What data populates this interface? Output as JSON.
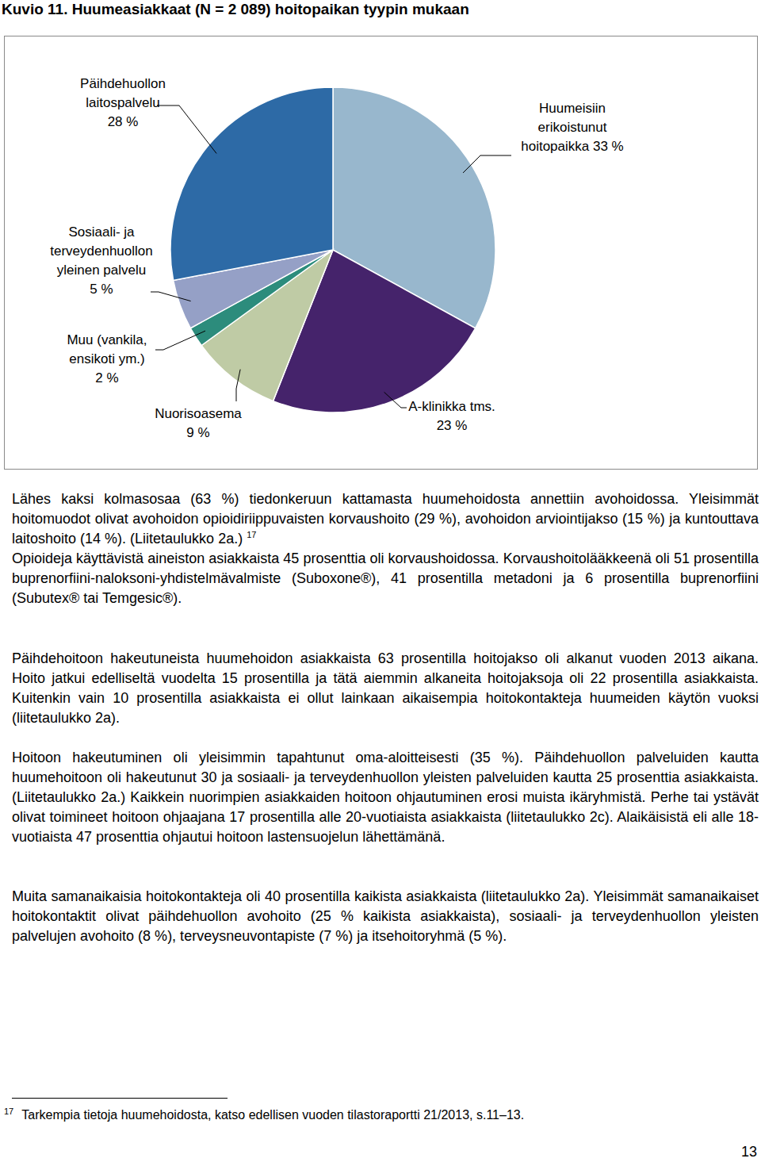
{
  "chart_data": {
    "type": "pie",
    "title": "Kuvio 11. Huumeasiakkaat (N = 2 089) hoitopaikan tyypin mukaan",
    "categories": [
      "Huumeisiin erikoistunut hoitopaikka",
      "A-klinikka tms.",
      "Nuorisoasema",
      "Muu (vankila, ensikoti ym.)",
      "Sosiaali- ja terveydenhuollon yleinen palvelu",
      "Päihdehuollon laitospalvelu"
    ],
    "values": [
      33,
      23,
      9,
      2,
      5,
      28
    ],
    "value_labels": [
      "33 %",
      "23 %",
      "9 %",
      "2 %",
      "5 %",
      "28 %"
    ],
    "colors": [
      "#98b7cd",
      "#45236b",
      "#bfcba5",
      "#2c8c7c",
      "#95a0c6",
      "#2d6aa6"
    ],
    "data_labels": true
  },
  "paragraphs": [
    {
      "text": "Lähes kaksi kolmasosaa (63 %) tiedonkeruun kattamasta huumehoidosta annettiin avohoidossa. Yleisimmät hoitomuodot olivat avohoidon opioidiriippuvaisten korvaushoito (29 %), avohoidon arviointijakso (15 %) ja kuntouttava laitoshoito (14 %). (Liitetaulukko 2a.)",
      "sup": "17"
    },
    {
      "text": "Opioideja käyttävistä aineiston asiakkaista 45 prosenttia oli korvaushoidossa. Korvaushoitolääkkeenä oli 51 prosentilla buprenorfiini-naloksoni-yhdistelmävalmiste (Suboxone®), 41 prosentilla metadoni ja 6 prosentilla buprenorfiini (Subutex® tai Temgesic®)."
    },
    {
      "text": "Päihdehoitoon hakeutuneista huumehoidon asiakkaista 63 prosentilla hoitojakso oli alkanut vuoden 2013 aikana. Hoito jatkui edelliseltä vuodelta 15 prosentilla ja tätä aiemmin alkaneita hoitojaksoja oli 22 prosentilla asiakkaista. Kuitenkin vain 10 prosentilla asiakkaista ei ollut lainkaan aikaisempia hoitokontakteja huumeiden käytön vuoksi (liitetaulukko 2a)."
    },
    {
      "text": "Hoitoon hakeutuminen oli yleisimmin tapahtunut oma-aloitteisesti (35 %). Päihdehuollon palveluiden kautta huumehoitoon oli hakeutunut 30 ja sosiaali- ja terveydenhuollon yleisten palveluiden kautta 25 prosenttia asiakkaista. (Liitetaulukko 2a.) Kaikkein nuorimpien asiakkaiden hoitoon ohjautuminen erosi muista ikäryhmistä. Perhe tai ystävät olivat toimineet hoitoon ohjaajana 17 prosentilla alle 20-vuotiaista asiakkaista (liitetaulukko 2c). Alaikäisistä eli alle 18-vuotiaista 47 prosenttia ohjautui hoitoon lastensuojelun lähettämänä."
    },
    {
      "text": "Muita samanaikaisia hoitokontakteja oli 40 prosentilla kaikista asiakkaista (liitetaulukko 2a). Yleisimmät samanaikaiset hoitokontaktit olivat päihdehuollon avohoito (25 % kaikista asiakkaista), sosiaali- ja terveydenhuollon yleisten palvelujen avohoito (8 %), terveysneuvontapiste (7 %) ja itsehoitoryhmä (5 %)."
    }
  ],
  "footnote": {
    "number": "17",
    "text": "Tarkempia tietoja huumehoidosta, katso edellisen vuoden tilastoraportti 21/2013, s.11–13."
  },
  "page_number": "13"
}
